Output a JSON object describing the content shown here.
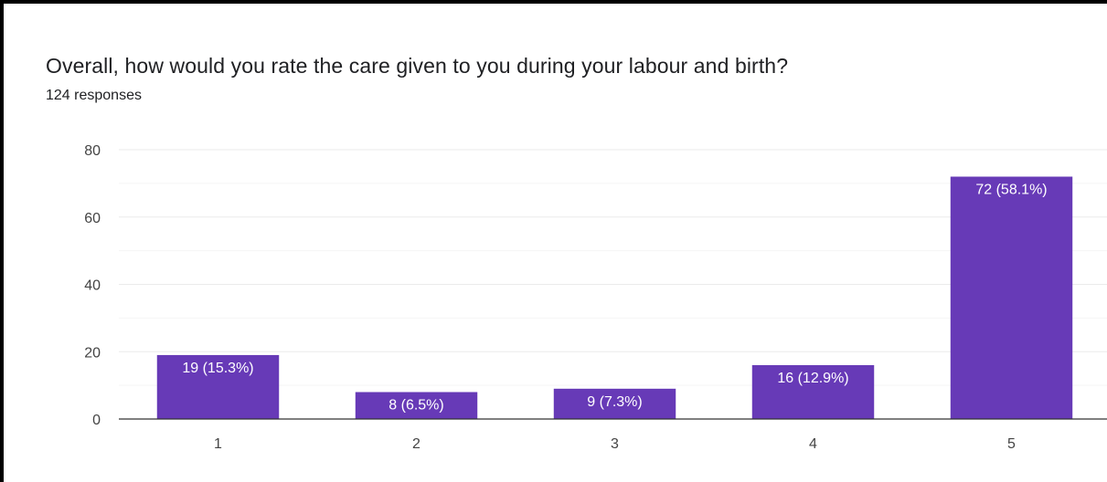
{
  "question": {
    "title": "Overall, how would you rate the care given to you during your labour and birth?",
    "responses": "124 responses"
  },
  "colors": {
    "bar": "#673ab7",
    "bar_label": "#ffffff",
    "text": "#202124",
    "axis_text": "#444444",
    "gridline": "#ebebeb",
    "minor_gridline": "#f5f5f5",
    "baseline": "#333333"
  },
  "chart_data": {
    "type": "bar",
    "title": "Overall, how would you rate the care given to you during your labour and birth?",
    "subtitle": "124 responses",
    "categories": [
      "1",
      "2",
      "3",
      "4",
      "5"
    ],
    "values": [
      19,
      8,
      9,
      16,
      72
    ],
    "data_labels": [
      "19 (15.3%)",
      "8 (6.5%)",
      "9 (7.3%)",
      "16 (12.9%)",
      "72 (58.1%)"
    ],
    "yticks": [
      0,
      20,
      40,
      60,
      80
    ],
    "ylim": [
      0,
      80
    ],
    "xlabel": "",
    "ylabel": "",
    "grid": true,
    "legend": "none"
  }
}
